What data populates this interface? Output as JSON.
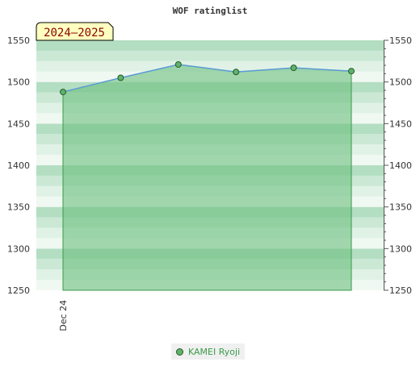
{
  "chart_data": {
    "type": "area",
    "title": "WOF ratinglist",
    "season_badge": "2024–2025",
    "xlabel": "",
    "ylabel": "",
    "x_tick_labels": [
      "Dec 24"
    ],
    "ylim": [
      1250,
      1550
    ],
    "y_ticks": [
      1250,
      1300,
      1350,
      1400,
      1450,
      1500,
      1550
    ],
    "y_tick_labels": [
      "1250",
      "1300",
      "1350",
      "1400",
      "1450",
      "1500",
      "1550"
    ],
    "grid": false,
    "legend_position": "bottom",
    "series": [
      {
        "name": "KAMEI Ryoji",
        "values": [
          1488,
          1505,
          1521,
          1512,
          1517,
          1513
        ],
        "line_color": "#5b9bd5",
        "fill_color": "#6dbf7e",
        "marker_color": "#5fb36a"
      }
    ]
  },
  "colors": {
    "band_dark": "#b3dec2",
    "band_mid": "#cbe8d5",
    "band_light": "#e0f2e6",
    "band_pale": "#f0f8f2",
    "badge_bg": "#ffffc0",
    "badge_text": "#8b0000"
  }
}
